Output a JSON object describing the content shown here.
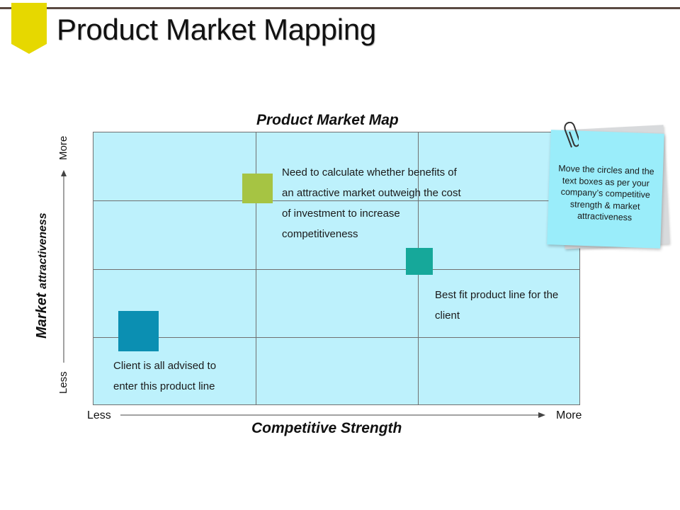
{
  "slide": {
    "title": "Product Market Mapping"
  },
  "map": {
    "title": "Product Market Map",
    "y_axis": {
      "title_main": "Market",
      "title_sub": "attractiveness",
      "high_label": "More",
      "low_label": "Less"
    },
    "x_axis": {
      "title": "Competitive Strength",
      "low_label": "Less",
      "high_label": "More"
    },
    "notes": {
      "green": "Need to calculate whether benefits of an attractive market outweigh the cost of investment to increase competitiveness",
      "teal": "Best fit product line for the client",
      "blue": "Client is all advised to enter this product line"
    }
  },
  "sticky_note": {
    "text": "Move the circles and the text boxes as per your company’s competitive strength & market attractiveness"
  },
  "colors": {
    "grid_fill": "#bdf1fc",
    "green_marker": "#a6c443",
    "teal_marker": "#16a89a",
    "blue_marker": "#0b8fb2",
    "title_tag": "#e6d800",
    "sticky": "#9aedfa"
  },
  "icons": [
    "bookmark-tag-icon",
    "paperclip-icon",
    "up-arrow-icon",
    "right-arrow-icon"
  ]
}
